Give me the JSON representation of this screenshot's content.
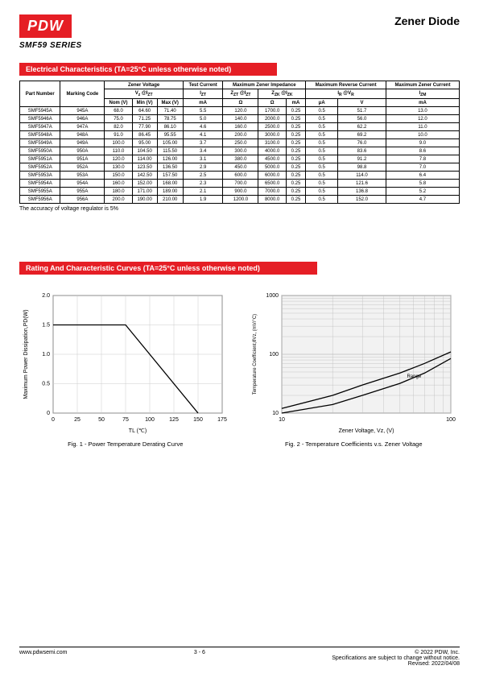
{
  "header": {
    "logo": "PDW",
    "title": "Zener Diode",
    "series": "SMF59 SERIES"
  },
  "section1": {
    "heading": "Electrical Characteristics (TA=25°C unless otherwise noted)",
    "columns": {
      "part": "Part Number",
      "marking": "Marking Code",
      "zener_v": "Zener Voltage",
      "test_i": "Test Current",
      "max_imp": "Maximum Zener Impedance",
      "max_rev": "Maximum Reverse Current",
      "max_zen_i": "Maximum Zener Current",
      "vz": "Vz @IZT",
      "izt": "IZT",
      "zzt": "ZZT @IZT",
      "zzk": "ZZK @IZK",
      "ir": "IR @VR",
      "izm": "IZM",
      "nom": "Nom (V)",
      "min": "Min (V)",
      "max": "Max (V)",
      "ma": "mA",
      "ohm": "Ω",
      "ua": "μA",
      "v": "V"
    },
    "rows": [
      [
        "SMF5945A",
        "945A",
        "68.0",
        "64.60",
        "71.40",
        "5.5",
        "120.0",
        "1700.0",
        "0.25",
        "0.5",
        "51.7",
        "13.0"
      ],
      [
        "SMF5946A",
        "946A",
        "75.0",
        "71.25",
        "78.75",
        "5.0",
        "140.0",
        "2000.0",
        "0.25",
        "0.5",
        "56.0",
        "12.0"
      ],
      [
        "SMF5947A",
        "947A",
        "82.0",
        "77.90",
        "86.10",
        "4.6",
        "160.0",
        "2500.0",
        "0.25",
        "0.5",
        "62.2",
        "11.0"
      ],
      [
        "SMF5948A",
        "948A",
        "91.0",
        "86.45",
        "95.55",
        "4.1",
        "200.0",
        "3000.0",
        "0.25",
        "0.5",
        "69.2",
        "10.0"
      ],
      [
        "SMF5949A",
        "949A",
        "100.0",
        "95.00",
        "105.00",
        "3.7",
        "250.0",
        "3100.0",
        "0.25",
        "0.5",
        "76.0",
        "9.0"
      ],
      [
        "SMF5950A",
        "950A",
        "110.0",
        "104.50",
        "115.50",
        "3.4",
        "300.0",
        "4000.0",
        "0.25",
        "0.5",
        "83.6",
        "8.6"
      ],
      [
        "SMF5951A",
        "951A",
        "120.0",
        "114.00",
        "126.00",
        "3.1",
        "380.0",
        "4500.0",
        "0.25",
        "0.5",
        "91.2",
        "7.8"
      ],
      [
        "SMF5952A",
        "952A",
        "130.0",
        "123.50",
        "136.50",
        "2.9",
        "450.0",
        "5000.0",
        "0.25",
        "0.5",
        "98.8",
        "7.0"
      ],
      [
        "SMF5953A",
        "953A",
        "150.0",
        "142.50",
        "157.50",
        "2.5",
        "600.0",
        "6000.0",
        "0.25",
        "0.5",
        "114.0",
        "6.4"
      ],
      [
        "SMF5954A",
        "954A",
        "160.0",
        "152.00",
        "168.00",
        "2.3",
        "700.0",
        "6500.0",
        "0.25",
        "0.5",
        "121.6",
        "5.8"
      ],
      [
        "SMF5955A",
        "955A",
        "180.0",
        "171.00",
        "189.00",
        "2.1",
        "900.0",
        "7000.0",
        "0.25",
        "0.5",
        "136.8",
        "5.2"
      ],
      [
        "SMF5956A",
        "956A",
        "200.0",
        "190.00",
        "210.00",
        "1.9",
        "1200.0",
        "8000.0",
        "0.25",
        "0.5",
        "152.0",
        "4.7"
      ]
    ],
    "note": "The accuracy of voltage regulator is 5%"
  },
  "section2": {
    "heading": "Rating And Characteristic Curves (TA=25°C unless otherwise noted)",
    "chart1": {
      "caption": "Fig. 1 - Power Temperature Derating Curve",
      "xlabel": "TL  (℃)",
      "ylabel": "Maximum Power Dissipation,PD(W)",
      "x_ticks": [
        "0",
        "25",
        "50",
        "75",
        "100",
        "125",
        "150",
        "175"
      ],
      "y_ticks": [
        "0",
        "0.5",
        "1.0",
        "1.5",
        "2.0"
      ],
      "xlim": [
        0,
        175
      ],
      "ylim": [
        0,
        2.0
      ],
      "line_points": [
        [
          0,
          1.5
        ],
        [
          75,
          1.5
        ],
        [
          150,
          0
        ]
      ],
      "line_color": "#000000",
      "grid_color": "#cccccc",
      "bg": "#ffffff"
    },
    "chart2": {
      "caption": "Fig. 2 - Temperature Coefficients v.s. Zener Voltage",
      "xlabel": "Zener Voltage, Vz, (V)",
      "ylabel": "Temperature Coefficient,θVz, (mV/°C)",
      "x_ticks": [
        "10",
        "100"
      ],
      "y_ticks": [
        "10",
        "100",
        "1000"
      ],
      "range_label": "Range",
      "line_color": "#000000",
      "grid_color": "#bbbbbb",
      "bg": "#f2f2f2"
    }
  },
  "footer": {
    "url": "www.pdwsemi.com",
    "page": "3 - 6",
    "copyright": "© 2022 PDW, Inc.",
    "disclaimer": "Specifications are subject to change without notice.",
    "revised": "Revised: 2022/04/08"
  }
}
